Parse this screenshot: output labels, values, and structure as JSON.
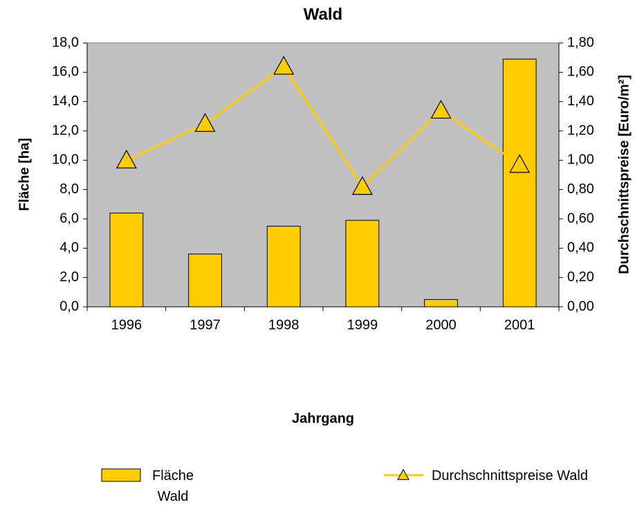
{
  "chart_data": {
    "type": "bar",
    "title": "Wald",
    "x_label": "Jahrgang",
    "y_label": "Fläche [ha]",
    "y2_label": "Durchschnittspreise [Euro/m²]",
    "categories": [
      "1996",
      "1997",
      "1998",
      "1999",
      "2000",
      "2001"
    ],
    "series": [
      {
        "name": "Fläche Wald",
        "type": "bar",
        "color": "#ffcc00",
        "values": [
          6.4,
          3.6,
          5.5,
          5.9,
          0.5,
          16.9
        ]
      },
      {
        "name": "Durchschnittspreise Wald",
        "type": "line",
        "axis": "y2",
        "color": "#ffcc00",
        "values": [
          1.0,
          1.25,
          1.64,
          0.82,
          1.34,
          0.97
        ]
      }
    ],
    "ylim": [
      0,
      18
    ],
    "yticks": [
      {
        "value": 0,
        "label": "0,0"
      },
      {
        "value": 2,
        "label": "2,0"
      },
      {
        "value": 4,
        "label": "4,0"
      },
      {
        "value": 6,
        "label": "6,0"
      },
      {
        "value": 8,
        "label": "8,0"
      },
      {
        "value": 10,
        "label": "10,0"
      },
      {
        "value": 12,
        "label": "12,0"
      },
      {
        "value": 14,
        "label": "14,0"
      },
      {
        "value": 16,
        "label": "16,0"
      },
      {
        "value": 18,
        "label": "18,0"
      }
    ],
    "y2lim": [
      0,
      1.8
    ],
    "y2ticks": [
      {
        "value": 0,
        "label": "0,00"
      },
      {
        "value": 0.2,
        "label": "0,20"
      },
      {
        "value": 0.4,
        "label": "0,40"
      },
      {
        "value": 0.6,
        "label": "0,60"
      },
      {
        "value": 0.8,
        "label": "0,80"
      },
      {
        "value": 1.0,
        "label": "1,00"
      },
      {
        "value": 1.2,
        "label": "1,20"
      },
      {
        "value": 1.4,
        "label": "1,40"
      },
      {
        "value": 1.6,
        "label": "1,60"
      },
      {
        "value": 1.8,
        "label": "1,80"
      }
    ],
    "grid": false,
    "plot_background": "#c0c0c0",
    "legend": "bottom"
  }
}
